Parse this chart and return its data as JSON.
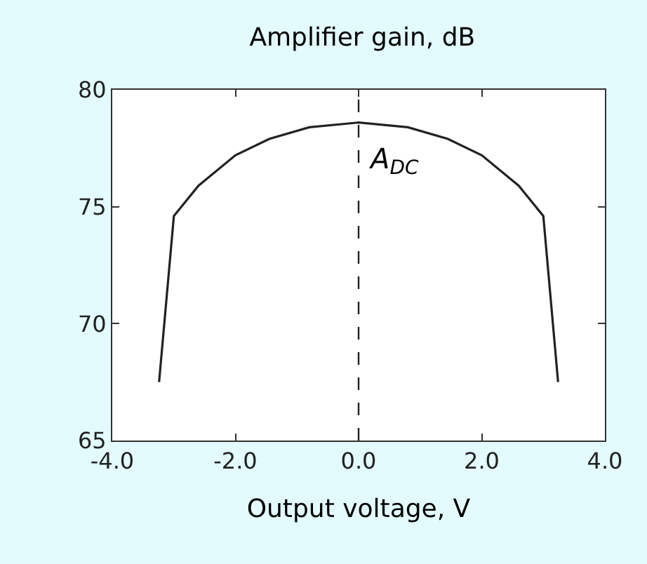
{
  "chart_data": {
    "type": "line",
    "title": "Amplifier gain, dB",
    "xlabel": "Output voltage, V",
    "x": [
      -3.24,
      -3.0,
      -2.6,
      -2.0,
      -1.45,
      -0.8,
      0.0,
      0.8,
      1.45,
      2.0,
      2.6,
      3.0,
      3.24
    ],
    "series": [
      {
        "color": "#222222",
        "values": [
          67.5,
          74.6,
          75.9,
          77.2,
          77.9,
          78.4,
          78.6,
          78.4,
          77.9,
          77.2,
          75.9,
          74.6,
          67.5
        ]
      }
    ],
    "xlim": [
      -4.0,
      4.0
    ],
    "xticks": [
      {
        "value": -4,
        "label": "-4.0"
      },
      {
        "value": -2,
        "label": "-2.0"
      },
      {
        "value": 0,
        "label": "0.0"
      },
      {
        "value": 2,
        "label": "2.0"
      },
      {
        "value": 4,
        "label": "4.0"
      }
    ],
    "ylim": [
      65,
      80
    ],
    "yticks": [
      65,
      70,
      75,
      80
    ],
    "ref_lines": [
      {
        "axis": "x",
        "value": 0,
        "label": "A$_{DC}$",
        "color": "#222222",
        "line_style": "dashed"
      }
    ],
    "marker": "none",
    "line_style": "solid"
  }
}
